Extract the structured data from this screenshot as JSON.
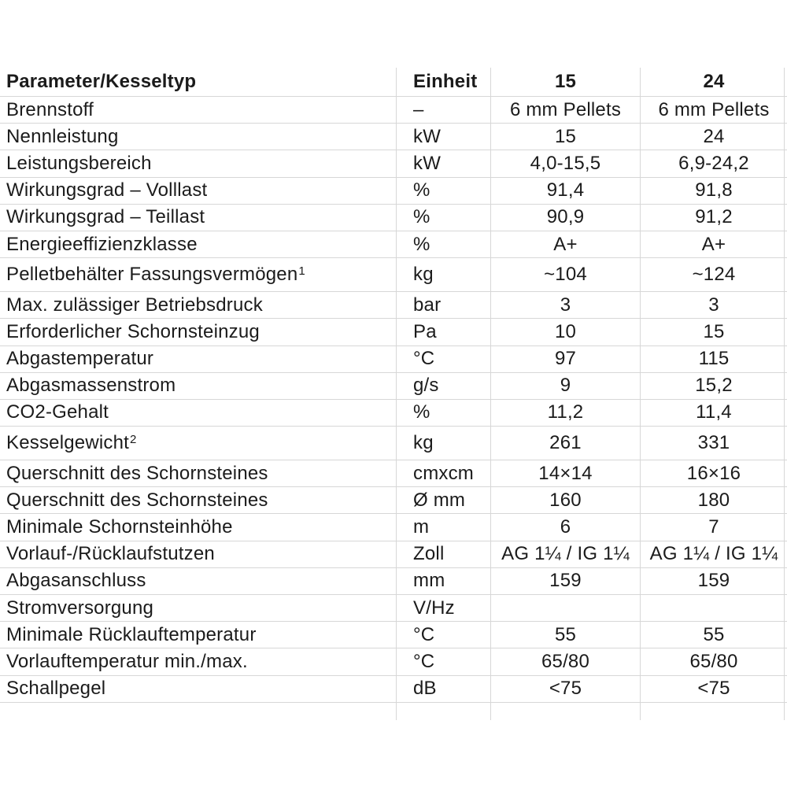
{
  "colors": {
    "grid_line": "#d7d7d7",
    "text": "#1b1b1b",
    "background": "#ffffff"
  },
  "table": {
    "columns": [
      "Parameter/Kesseltyp",
      "Einheit",
      "15",
      "24"
    ],
    "rows": [
      {
        "param": "Brennstoff",
        "unit": "–",
        "v15": "6 mm Pellets",
        "v24": "6 mm Pellets"
      },
      {
        "param": "Nennleistung",
        "unit": "kW",
        "v15": "15",
        "v24": "24"
      },
      {
        "param": "Leistungsbereich",
        "unit": "kW",
        "v15": "4,0-15,5",
        "v24": "6,9-24,2"
      },
      {
        "param": "Wirkungsgrad – Volllast",
        "unit": "%",
        "v15": "91,4",
        "v24": "91,8"
      },
      {
        "param": "Wirkungsgrad – Teillast",
        "unit": "%",
        "v15": "90,9",
        "v24": "91,2"
      },
      {
        "param": "Energieeffizienzklasse",
        "unit": "%",
        "v15": "A+",
        "v24": "A+"
      },
      {
        "param": "Pelletbehälter Fassungsvermögen",
        "sup": "1",
        "unit": "kg",
        "v15": "~104",
        "v24": "~124",
        "tall": true
      },
      {
        "param": "Max. zulässiger Betriebsdruck",
        "unit": "bar",
        "v15": "3",
        "v24": "3"
      },
      {
        "param": "Erforderlicher Schornsteinzug",
        "unit": "Pa",
        "v15": "10",
        "v24": "15"
      },
      {
        "param": "Abgastemperatur",
        "unit": "°C",
        "v15": "97",
        "v24": "115"
      },
      {
        "param": "Abgasmassenstrom",
        "unit": "g/s",
        "v15": "9",
        "v24": "15,2"
      },
      {
        "param": "CO2-Gehalt",
        "unit": "%",
        "v15": "11,2",
        "v24": "11,4"
      },
      {
        "param": "Kesselgewicht",
        "sup": "2",
        "unit": "kg",
        "v15": "261",
        "v24": "331",
        "tall": true
      },
      {
        "param": "Querschnitt des Schornsteines",
        "unit": "cmxcm",
        "v15": "14×14",
        "v24": "16×16"
      },
      {
        "param": "Querschnitt des Schornsteines",
        "unit": "Ø mm",
        "v15": "160",
        "v24": "180"
      },
      {
        "param": "Minimale Schornsteinhöhe",
        "unit": "m",
        "v15": "6",
        "v24": "7"
      },
      {
        "param": "Vorlauf-/Rücklaufstutzen",
        "unit": "Zoll",
        "v15": "AG 1¼ / IG 1¼",
        "v24": "AG 1¼ / IG 1¼"
      },
      {
        "param": "Abgasanschluss",
        "unit": "mm",
        "v15": "159",
        "v24": "159"
      },
      {
        "param": "Stromversorgung",
        "unit": "V/Hz",
        "v15": "",
        "v24": ""
      },
      {
        "param": "Minimale Rücklauftemperatur",
        "unit": "°C",
        "v15": "55",
        "v24": "55"
      },
      {
        "param": "Vorlauftemperatur min./max.",
        "unit": "°C",
        "v15": "65/80",
        "v24": "65/80"
      },
      {
        "param": "Schallpegel",
        "unit": "dB",
        "v15": "<75",
        "v24": "<75"
      }
    ]
  }
}
